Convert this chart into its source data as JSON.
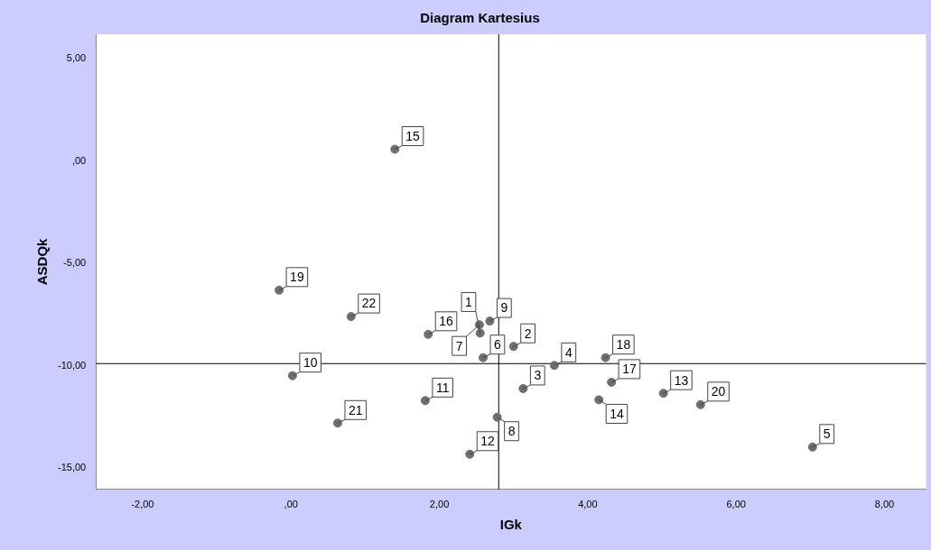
{
  "chart_data": {
    "type": "scatter",
    "title": "Diagram Kartesius",
    "xlabel": "IGk",
    "ylabel": "ASDQk",
    "xlim": [
      -2.63,
      8.56
    ],
    "ylim": [
      -16.05,
      6.2
    ],
    "xticks": [
      {
        "value": -2,
        "label": "-2,00"
      },
      {
        "value": 0,
        "label": ",00"
      },
      {
        "value": 2,
        "label": "2,00"
      },
      {
        "value": 4,
        "label": "4,00"
      },
      {
        "value": 6,
        "label": "6,00"
      },
      {
        "value": 8,
        "label": "8,00"
      }
    ],
    "yticks": [
      {
        "value": -15,
        "label": "-15,00"
      },
      {
        "value": -10,
        "label": "-10,00"
      },
      {
        "value": -5,
        "label": "-5,00"
      },
      {
        "value": 0,
        "label": ",00"
      },
      {
        "value": 5,
        "label": "5,00"
      }
    ],
    "grid": false,
    "legend": false,
    "marker": "circle",
    "series": [
      {
        "color": "#6e6e6e",
        "x": [
          2.55,
          3.0,
          3.13,
          3.55,
          7.03,
          2.59,
          2.54,
          2.78,
          2.68,
          0.02,
          1.81,
          2.41,
          5.02,
          4.15,
          1.4,
          1.85,
          4.32,
          4.24,
          -0.16,
          5.52,
          0.63,
          0.81
        ],
        "values": [
          -8.41,
          -9.06,
          -11.12,
          -9.99,
          -13.98,
          -9.61,
          -8.0,
          -12.52,
          -7.82,
          -10.49,
          -11.71,
          -14.33,
          -11.35,
          -11.67,
          0.58,
          -8.47,
          -10.81,
          -9.61,
          -6.31,
          -11.91,
          -12.81,
          -7.6
        ]
      }
    ],
    "ref_lines": [
      {
        "axis": "x",
        "value": 2.8,
        "color": "#000000"
      },
      {
        "axis": "y",
        "value": -9.9,
        "color": "#000000"
      }
    ],
    "annotations": [
      {
        "text": "1",
        "x": 2.55,
        "y": -8.41
      },
      {
        "text": "2",
        "x": 3.0,
        "y": -9.06
      },
      {
        "text": "3",
        "x": 3.13,
        "y": -11.12
      },
      {
        "text": "4",
        "x": 3.55,
        "y": -9.99
      },
      {
        "text": "5",
        "x": 7.03,
        "y": -13.98
      },
      {
        "text": "6",
        "x": 2.59,
        "y": -9.61
      },
      {
        "text": "7",
        "x": 2.54,
        "y": -8.0
      },
      {
        "text": "8",
        "x": 2.78,
        "y": -12.52
      },
      {
        "text": "9",
        "x": 2.68,
        "y": -7.82
      },
      {
        "text": "10",
        "x": 0.02,
        "y": -10.49
      },
      {
        "text": "11",
        "x": 1.81,
        "y": -11.71
      },
      {
        "text": "12",
        "x": 2.41,
        "y": -14.33
      },
      {
        "text": "13",
        "x": 5.02,
        "y": -11.35
      },
      {
        "text": "14",
        "x": 4.15,
        "y": -11.67
      },
      {
        "text": "15",
        "x": 1.4,
        "y": 0.58
      },
      {
        "text": "16",
        "x": 1.85,
        "y": -8.47
      },
      {
        "text": "17",
        "x": 4.32,
        "y": -10.81
      },
      {
        "text": "18",
        "x": 4.24,
        "y": -9.61
      },
      {
        "text": "19",
        "x": -0.16,
        "y": -6.31
      },
      {
        "text": "20",
        "x": 5.52,
        "y": -11.91
      },
      {
        "text": "21",
        "x": 0.63,
        "y": -12.81
      },
      {
        "text": "22",
        "x": 0.81,
        "y": -7.6
      }
    ]
  }
}
